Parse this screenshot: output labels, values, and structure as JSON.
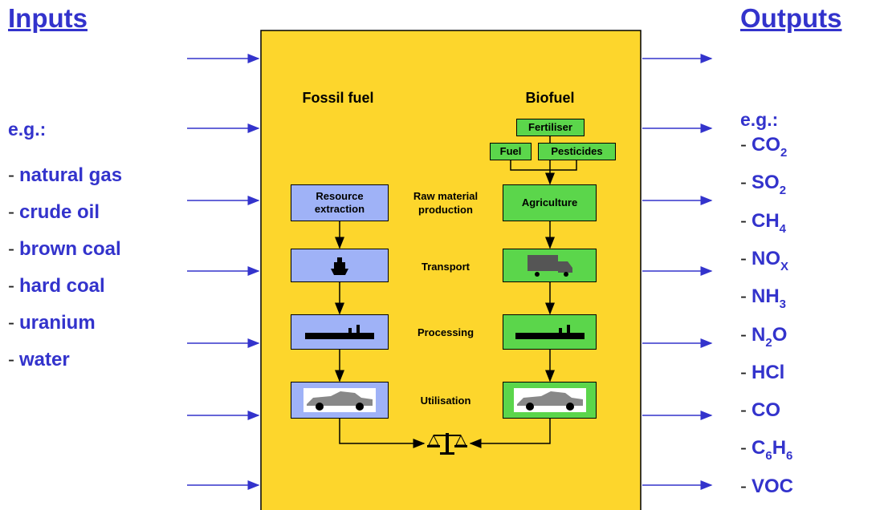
{
  "inputs": {
    "title": "Inputs",
    "example_label": "e.g.:",
    "bullet": "-",
    "items": [
      "natural gas",
      "crude oil",
      "brown coal",
      "hard coal",
      "uranium",
      "water"
    ]
  },
  "outputs": {
    "title": "Outputs",
    "example_label": "e.g.:",
    "bullet": "-",
    "items": [
      [
        {
          "text": "CO",
          "sub": "2"
        }
      ],
      [
        {
          "text": "SO",
          "sub": "2"
        }
      ],
      [
        {
          "text": "CH",
          "sub": "4"
        }
      ],
      [
        {
          "text": "NO",
          "sub": "X"
        }
      ],
      [
        {
          "text": "NH",
          "sub": "3"
        }
      ],
      [
        {
          "text": "N",
          "sub": "2"
        },
        {
          "text": "O"
        }
      ],
      [
        {
          "text": "HCl"
        }
      ],
      [
        {
          "text": "CO"
        }
      ],
      [
        {
          "text": "C",
          "sub": "6"
        },
        {
          "text": "H",
          "sub": "6"
        }
      ],
      [
        {
          "text": "VOC"
        }
      ]
    ]
  },
  "columns": {
    "fossil": "Fossil fuel",
    "bio": "Biofuel"
  },
  "stages": [
    "Raw material production",
    "Transport",
    "Processing",
    "Utilisation"
  ],
  "fossil_boxes": {
    "extraction": "Resource extraction"
  },
  "bio_boxes": {
    "fertiliser": "Fertiliser",
    "fuel": "Fuel",
    "pesticides": "Pesticides",
    "agriculture": "Agriculture"
  }
}
